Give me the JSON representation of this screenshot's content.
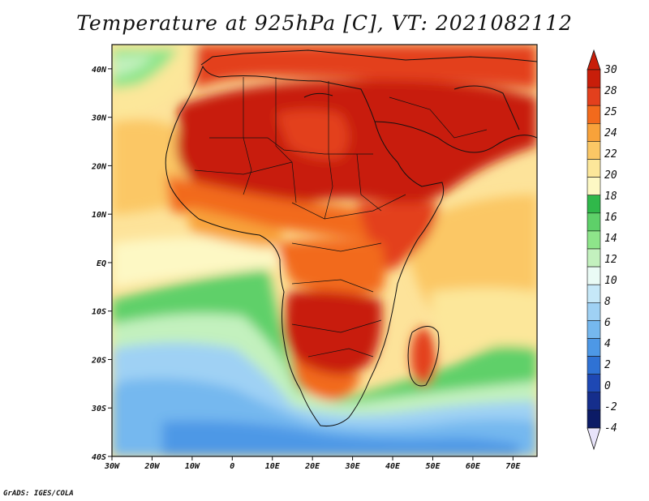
{
  "title": "Temperature at 925hPa [C], VT: 2021082112",
  "credit": "GrADS: IGES/COLA",
  "map": {
    "lon_range": [
      -30,
      76
    ],
    "lat_range": [
      -40,
      45
    ],
    "lon_ticks": [
      "30W",
      "20W",
      "10W",
      "0",
      "10E",
      "20E",
      "30E",
      "40E",
      "50E",
      "60E",
      "70E"
    ],
    "lat_ticks": [
      "40N",
      "30N",
      "20N",
      "10N",
      "EQ",
      "10S",
      "20S",
      "30S",
      "40S"
    ]
  },
  "colorbar": {
    "labels": [
      "30",
      "28",
      "25",
      "24",
      "22",
      "20",
      "18",
      "16",
      "14",
      "12",
      "10",
      "8",
      "6",
      "4",
      "2",
      "0",
      "-2",
      "-4"
    ],
    "colors": [
      "#c81e0a",
      "#e3401d",
      "#f26a1c",
      "#f8a23a",
      "#fbc765",
      "#fce79a",
      "#fdf8c4",
      "#30b84a",
      "#5ed069",
      "#8ee58a",
      "#c3f1be",
      "#eafbf5",
      "#c6e8f8",
      "#9fd1f4",
      "#75b8ef",
      "#4d98e6",
      "#2f72d4",
      "#1e48b4",
      "#152e8c",
      "#0c1b66"
    ],
    "over_color": "#c81e0a",
    "under_color": "#e8e4fa"
  }
}
